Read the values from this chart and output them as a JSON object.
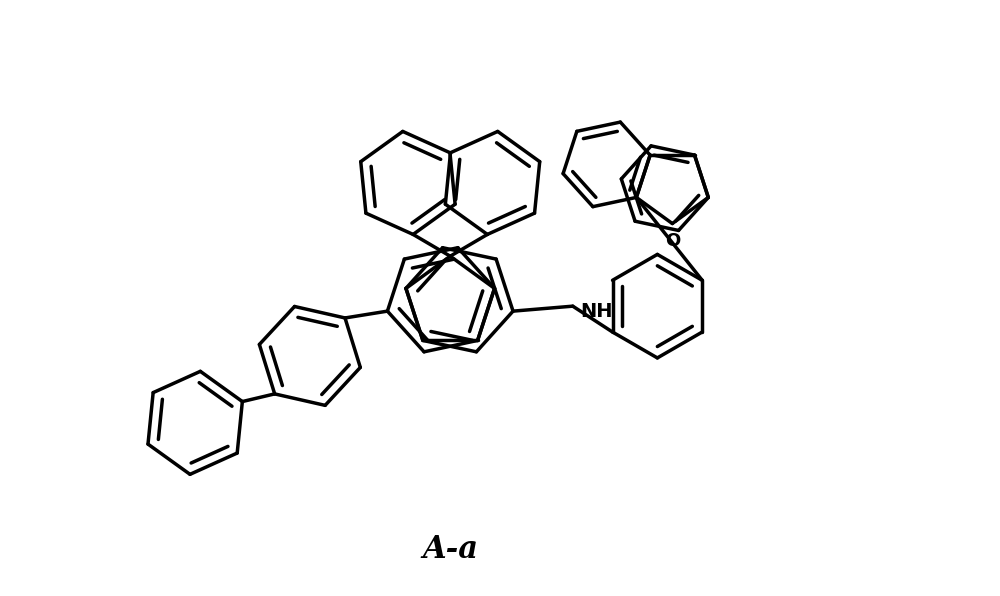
{
  "title": "A-a",
  "background_color": "#ffffff",
  "line_color": "#000000",
  "line_width": 2.5,
  "figsize": [
    10.0,
    5.96
  ],
  "dpi": 100
}
